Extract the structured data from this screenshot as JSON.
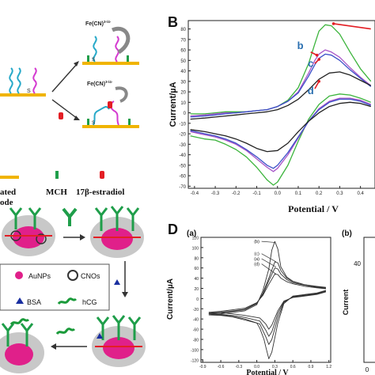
{
  "panel_labels": {
    "B": "B",
    "D": "D"
  },
  "panel_A": {
    "redox_top": "Fe(CN)",
    "redox_top_sup": "3-/4-",
    "redox_mid": "Fe(CN)",
    "redox_mid_sup": "3-/4-",
    "sulfur": "S",
    "legend": {
      "left_line1": "ated",
      "left_line2": "ode",
      "mch": "MCH",
      "estradiol": "17β-estradiol"
    }
  },
  "panel_C": {
    "aunps": "AuNPs",
    "cnos": "CNOs",
    "bsa": "BSA",
    "hcg": "hCG"
  },
  "panel_D_a": {
    "sub": "(a)"
  },
  "panel_D_b": {
    "sub": "(b)",
    "tick_40": "40",
    "tick_0": "0"
  },
  "chart_data": [
    {
      "type": "line",
      "xlabel": "Potential / V",
      "ylabel": "Current/µA",
      "xlim": [
        -0.43,
        0.47
      ],
      "ylim": [
        -72,
        88
      ],
      "xticks": [
        "-0.4",
        "-0.3",
        "-0.2",
        "-0.1",
        "0.0",
        "0.1",
        "0.2",
        "0.3",
        "0.4"
      ],
      "yticks": [
        "80",
        "70",
        "60",
        "50",
        "40",
        "30",
        "20",
        "10",
        "0",
        "-10",
        "-20",
        "-30",
        "-40",
        "-50",
        "-60",
        "-70"
      ],
      "annotations": [
        "b",
        "c",
        "d"
      ],
      "series": [
        {
          "color": "#3cb43c",
          "x": [
            -0.42,
            -0.35,
            -0.3,
            -0.25,
            -0.2,
            -0.15,
            -0.1,
            -0.05,
            0,
            0.05,
            0.1,
            0.15,
            0.18,
            0.2,
            0.23,
            0.26,
            0.3,
            0.35,
            0.4,
            0.45
          ],
          "y": [
            -1,
            -1,
            0,
            1,
            1,
            1,
            2,
            3,
            6,
            12,
            24,
            47,
            66,
            78,
            84,
            83,
            75,
            58,
            42,
            30
          ]
        },
        {
          "color": "#3cb43c",
          "x": [
            0.45,
            0.4,
            0.35,
            0.3,
            0.25,
            0.2,
            0.15,
            0.1,
            0.05,
            0,
            -0.02,
            -0.05,
            -0.1,
            -0.15,
            -0.2,
            -0.25,
            -0.3,
            -0.35,
            -0.42
          ],
          "y": [
            10,
            14,
            17,
            18,
            16,
            8,
            -6,
            -27,
            -50,
            -66,
            -69,
            -64,
            -52,
            -42,
            -35,
            -30,
            -26,
            -25,
            -22
          ]
        },
        {
          "color": "#a855c8",
          "x": [
            -0.42,
            -0.35,
            -0.3,
            -0.25,
            -0.2,
            -0.15,
            -0.1,
            -0.05,
            0,
            0.05,
            0.1,
            0.15,
            0.18,
            0.2,
            0.23,
            0.26,
            0.3,
            0.35,
            0.4,
            0.45
          ],
          "y": [
            -3,
            -2,
            -1,
            0,
            0,
            1,
            2,
            3,
            6,
            11,
            20,
            38,
            50,
            56,
            60,
            58,
            53,
            43,
            34,
            26
          ]
        },
        {
          "color": "#a855c8",
          "x": [
            0.45,
            0.4,
            0.35,
            0.3,
            0.25,
            0.2,
            0.15,
            0.1,
            0.05,
            0,
            -0.02,
            -0.05,
            -0.1,
            -0.15,
            -0.2,
            -0.25,
            -0.3,
            -0.35,
            -0.42
          ],
          "y": [
            8,
            12,
            14,
            14,
            11,
            4,
            -8,
            -24,
            -40,
            -53,
            -56,
            -52,
            -44,
            -36,
            -30,
            -26,
            -23,
            -21,
            -18
          ]
        },
        {
          "color": "#3a4fc8",
          "x": [
            -0.42,
            -0.35,
            -0.3,
            -0.25,
            -0.2,
            -0.15,
            -0.1,
            -0.05,
            0,
            0.05,
            0.1,
            0.15,
            0.18,
            0.2,
            0.23,
            0.26,
            0.3,
            0.35,
            0.4,
            0.45
          ],
          "y": [
            -4,
            -3,
            -2,
            -1,
            0,
            1,
            2,
            3,
            6,
            11,
            19,
            35,
            46,
            52,
            56,
            55,
            50,
            41,
            33,
            25
          ]
        },
        {
          "color": "#3a4fc8",
          "x": [
            0.45,
            0.4,
            0.35,
            0.3,
            0.25,
            0.2,
            0.15,
            0.1,
            0.05,
            0,
            -0.02,
            -0.05,
            -0.1,
            -0.15,
            -0.2,
            -0.25,
            -0.3,
            -0.35,
            -0.42
          ],
          "y": [
            7,
            11,
            13,
            13,
            10,
            3,
            -8,
            -23,
            -38,
            -50,
            -53,
            -50,
            -42,
            -35,
            -29,
            -25,
            -22,
            -20,
            -17
          ]
        },
        {
          "color": "#222222",
          "x": [
            -0.42,
            -0.35,
            -0.3,
            -0.25,
            -0.2,
            -0.15,
            -0.1,
            -0.05,
            0,
            0.05,
            0.1,
            0.15,
            0.2,
            0.25,
            0.3,
            0.35,
            0.4,
            0.45
          ],
          "y": [
            -6,
            -5,
            -4,
            -3,
            -2,
            -1,
            0,
            1,
            3,
            7,
            13,
            22,
            32,
            38,
            39,
            36,
            31,
            26
          ]
        },
        {
          "color": "#222222",
          "x": [
            0.45,
            0.4,
            0.35,
            0.3,
            0.25,
            0.2,
            0.15,
            0.1,
            0.05,
            0,
            -0.05,
            -0.1,
            -0.15,
            -0.2,
            -0.25,
            -0.3,
            -0.35,
            -0.42
          ],
          "y": [
            6,
            9,
            10,
            9,
            6,
            0,
            -8,
            -18,
            -29,
            -36,
            -37,
            -34,
            -29,
            -25,
            -22,
            -20,
            -18,
            -16
          ]
        }
      ]
    },
    {
      "type": "line",
      "xlabel": "Potential / V",
      "ylabel": "Current/µA",
      "xlim": [
        -0.93,
        1.23
      ],
      "ylim": [
        -125,
        120
      ],
      "xticks": [
        "-0.9",
        "-0.6",
        "-0.3",
        "0.0",
        "0.3",
        "0.6",
        "0.9",
        "1.2"
      ],
      "yticks": [
        "120",
        "100",
        "80",
        "60",
        "40",
        "20",
        "0",
        "-20",
        "-40",
        "-60",
        "-80",
        "-100",
        "-120"
      ],
      "annotations": [
        "(b)",
        "(c)",
        "(a)",
        "(d)"
      ],
      "series": [
        {
          "color": "#333333",
          "x": [
            -0.8,
            -0.6,
            -0.4,
            -0.2,
            0,
            0.1,
            0.2,
            0.25,
            0.3,
            0.35,
            0.4,
            0.5,
            0.6,
            0.8,
            1.0,
            1.15
          ],
          "y": [
            -32,
            -30,
            -27,
            -24,
            -12,
            15,
            58,
            95,
            112,
            97,
            62,
            42,
            34,
            27,
            24,
            22
          ]
        },
        {
          "color": "#333333",
          "x": [
            1.15,
            1.0,
            0.8,
            0.6,
            0.45,
            0.35,
            0.25,
            0.2,
            0.15,
            0.12,
            0.05,
            0,
            -0.2,
            -0.4,
            -0.6,
            -0.8
          ],
          "y": [
            16,
            11,
            8,
            5,
            -10,
            -48,
            -105,
            -118,
            -95,
            -80,
            -58,
            -48,
            -42,
            -36,
            -33,
            -32
          ]
        },
        {
          "color": "#333333",
          "x": [
            -0.8,
            -0.6,
            -0.4,
            -0.2,
            0,
            0.1,
            0.2,
            0.3,
            0.35,
            0.4,
            0.5,
            0.6,
            0.8,
            1.0,
            1.15
          ],
          "y": [
            -30,
            -28,
            -25,
            -22,
            -10,
            10,
            40,
            72,
            70,
            55,
            40,
            33,
            27,
            23,
            21
          ]
        },
        {
          "color": "#333333",
          "x": [
            1.15,
            1.0,
            0.8,
            0.6,
            0.45,
            0.35,
            0.25,
            0.2,
            0.15,
            0.05,
            -0.2,
            -0.4,
            -0.6,
            -0.8
          ],
          "y": [
            15,
            10,
            7,
            4,
            -8,
            -38,
            -80,
            -90,
            -75,
            -50,
            -40,
            -35,
            -32,
            -30
          ]
        },
        {
          "color": "#333333",
          "x": [
            -0.8,
            -0.6,
            -0.4,
            -0.2,
            0,
            0.1,
            0.2,
            0.3,
            0.35,
            0.4,
            0.5,
            0.6,
            0.8,
            1.0,
            1.15
          ],
          "y": [
            -29,
            -27,
            -24,
            -21,
            -9,
            8,
            35,
            60,
            58,
            48,
            37,
            31,
            26,
            22,
            20
          ]
        },
        {
          "color": "#333333",
          "x": [
            1.15,
            1.0,
            0.8,
            0.6,
            0.45,
            0.35,
            0.25,
            0.2,
            0.15,
            0.05,
            -0.2,
            -0.4,
            -0.6,
            -0.8
          ],
          "y": [
            14,
            9,
            6,
            3,
            -6,
            -30,
            -65,
            -74,
            -62,
            -44,
            -37,
            -33,
            -31,
            -29
          ]
        },
        {
          "color": "#333333",
          "x": [
            -0.8,
            -0.6,
            -0.4,
            -0.2,
            0,
            0.1,
            0.2,
            0.3,
            0.35,
            0.4,
            0.5,
            0.6,
            0.8,
            1.0,
            1.15
          ],
          "y": [
            -27,
            -25,
            -22,
            -19,
            -8,
            6,
            28,
            48,
            47,
            40,
            33,
            29,
            24,
            21,
            19
          ]
        },
        {
          "color": "#333333",
          "x": [
            1.15,
            1.0,
            0.8,
            0.6,
            0.45,
            0.35,
            0.25,
            0.2,
            0.15,
            0.05,
            -0.2,
            -0.4,
            -0.6,
            -0.8
          ],
          "y": [
            13,
            8,
            5,
            2,
            -5,
            -24,
            -52,
            -60,
            -50,
            -38,
            -33,
            -30,
            -28,
            -27
          ]
        }
      ]
    }
  ]
}
